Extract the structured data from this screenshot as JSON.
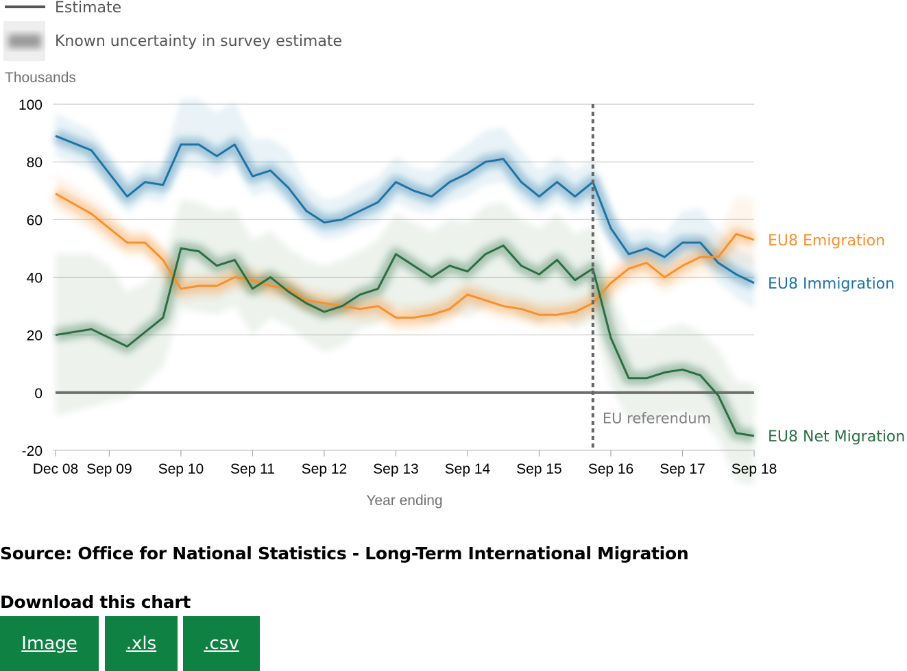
{
  "chart_data": {
    "type": "line",
    "ylabel": "Thousands",
    "xlabel": "Year ending",
    "ylim": [
      -20,
      100
    ],
    "yticks": [
      -20,
      0,
      20,
      40,
      60,
      80,
      100
    ],
    "x_tick_labels": [
      "Dec 08",
      "Sep 09",
      "Sep 10",
      "Sep 11",
      "Sep 12",
      "Sep 13",
      "Sep 14",
      "Sep 15",
      "Sep 16",
      "Sep 17",
      "Sep 18"
    ],
    "x_tick_positions": [
      0,
      0.75,
      1.75,
      2.75,
      3.75,
      4.75,
      5.75,
      6.75,
      7.75,
      8.75,
      9.75
    ],
    "x_range": [
      0,
      9.75
    ],
    "legend": {
      "estimate_label": "Estimate",
      "uncertainty_label": "Known uncertainty in survey estimate"
    },
    "grid": true,
    "annotation": {
      "label": "EU referendum",
      "x": 7.5
    },
    "series": [
      {
        "name": "EU8 Immigration",
        "color": "#1f73a3",
        "x": [
          0,
          0.5,
          0.75,
          1,
          1.25,
          1.5,
          1.75,
          2,
          2.25,
          2.5,
          2.75,
          3,
          3.25,
          3.5,
          3.75,
          4,
          4.25,
          4.5,
          4.75,
          5,
          5.25,
          5.5,
          5.75,
          6,
          6.25,
          6.5,
          6.75,
          7,
          7.25,
          7.5,
          7.75,
          8,
          8.25,
          8.5,
          8.75,
          9,
          9.25,
          9.5,
          9.75
        ],
        "values": [
          89,
          84,
          76,
          68,
          73,
          72,
          86,
          86,
          82,
          86,
          75,
          77,
          71,
          63,
          59,
          60,
          63,
          66,
          73,
          70,
          68,
          73,
          76,
          80,
          81,
          73,
          68,
          73,
          68,
          73,
          57,
          48,
          50,
          47,
          52,
          52,
          45,
          41,
          38
        ],
        "ci_lower": [
          82,
          77,
          70,
          62,
          67,
          66,
          78,
          78,
          75,
          79,
          68,
          70,
          65,
          57,
          53,
          54,
          57,
          59,
          66,
          63,
          62,
          66,
          68,
          72,
          73,
          66,
          62,
          66,
          62,
          66,
          51,
          43,
          44,
          42,
          46,
          46,
          38,
          33,
          29
        ],
        "ci_upper": [
          97,
          91,
          83,
          75,
          80,
          79,
          102,
          102,
          97,
          101,
          88,
          88,
          84,
          72,
          67,
          68,
          72,
          75,
          82,
          78,
          77,
          82,
          86,
          91,
          92,
          84,
          77,
          82,
          77,
          81,
          63,
          56,
          57,
          55,
          63,
          64,
          56,
          50,
          47
        ],
        "end_label": "EU8 Immigration"
      },
      {
        "name": "EU8 Emigration",
        "color": "#f7902f",
        "x": [
          0,
          0.5,
          0.75,
          1,
          1.25,
          1.5,
          1.75,
          2,
          2.25,
          2.5,
          2.75,
          3,
          3.25,
          3.5,
          3.75,
          4,
          4.25,
          4.5,
          4.75,
          5,
          5.25,
          5.5,
          5.75,
          6,
          6.25,
          6.5,
          6.75,
          7,
          7.25,
          7.5,
          7.75,
          8,
          8.25,
          8.5,
          8.75,
          9,
          9.25,
          9.5,
          9.75
        ],
        "values": [
          69,
          62,
          57,
          52,
          52,
          46,
          36,
          37,
          37,
          40,
          39,
          37,
          36,
          32,
          31,
          30,
          29,
          30,
          26,
          26,
          27,
          29,
          34,
          32,
          30,
          29,
          27,
          27,
          28,
          31,
          38,
          43,
          45,
          40,
          44,
          47,
          47,
          55,
          53
        ],
        "ci_lower": [
          63,
          56,
          51,
          47,
          47,
          41,
          31,
          32,
          32,
          35,
          34,
          32,
          31,
          27,
          26,
          25,
          24,
          24,
          21,
          21,
          22,
          24,
          29,
          27,
          25,
          24,
          22,
          22,
          23,
          26,
          32,
          37,
          39,
          34,
          38,
          40,
          40,
          45,
          43
        ],
        "ci_upper": [
          76,
          68,
          63,
          57,
          57,
          51,
          41,
          42,
          42,
          45,
          44,
          42,
          41,
          37,
          36,
          35,
          34,
          35,
          31,
          31,
          32,
          34,
          39,
          37,
          35,
          34,
          32,
          32,
          33,
          36,
          44,
          49,
          51,
          46,
          51,
          54,
          55,
          68,
          67
        ],
        "end_label": "EU8 Emigration"
      },
      {
        "name": "EU8 Net Migration",
        "color": "#2b6e43",
        "x": [
          0,
          0.5,
          0.75,
          1,
          1.25,
          1.5,
          1.75,
          2,
          2.25,
          2.5,
          2.75,
          3,
          3.25,
          3.5,
          3.75,
          4,
          4.25,
          4.5,
          4.75,
          5,
          5.25,
          5.5,
          5.75,
          6,
          6.25,
          6.5,
          6.75,
          7,
          7.25,
          7.5,
          7.75,
          8,
          8.25,
          8.5,
          8.75,
          9,
          9.25,
          9.5,
          9.75
        ],
        "values": [
          20,
          22,
          19,
          16,
          21,
          26,
          50,
          49,
          44,
          46,
          36,
          40,
          35,
          31,
          28,
          30,
          34,
          36,
          48,
          44,
          40,
          44,
          42,
          48,
          51,
          44,
          41,
          46,
          39,
          43,
          19,
          5,
          5,
          7,
          8,
          6,
          -1,
          -14,
          -15
        ],
        "ci_lower": [
          -8,
          -5,
          -3,
          -2,
          3,
          9,
          29,
          28,
          27,
          30,
          20,
          26,
          23,
          18,
          14,
          16,
          22,
          24,
          30,
          27,
          24,
          28,
          26,
          30,
          32,
          26,
          24,
          28,
          22,
          25,
          2,
          -10,
          -10,
          -8,
          -7,
          -9,
          -16,
          -31,
          -32
        ],
        "ci_upper": [
          48,
          48,
          44,
          35,
          38,
          45,
          67,
          66,
          63,
          64,
          53,
          56,
          50,
          46,
          44,
          46,
          49,
          53,
          62,
          59,
          56,
          60,
          59,
          65,
          66,
          60,
          57,
          62,
          55,
          58,
          36,
          21,
          20,
          22,
          24,
          21,
          15,
          4,
          3
        ],
        "end_label": "EU8 Net Migration"
      }
    ]
  },
  "source": "Source: Office for National Statistics - Long-Term International Migration",
  "download": {
    "title": "Download this chart",
    "buttons": [
      ".xls",
      ".csv"
    ],
    "image_label": "Image",
    "xls_label": ".xls",
    "csv_label": ".csv"
  },
  "colors": {
    "button_bg": "#0f8243",
    "zero_line": "#6e6e6e",
    "grid": "#cccccc"
  }
}
